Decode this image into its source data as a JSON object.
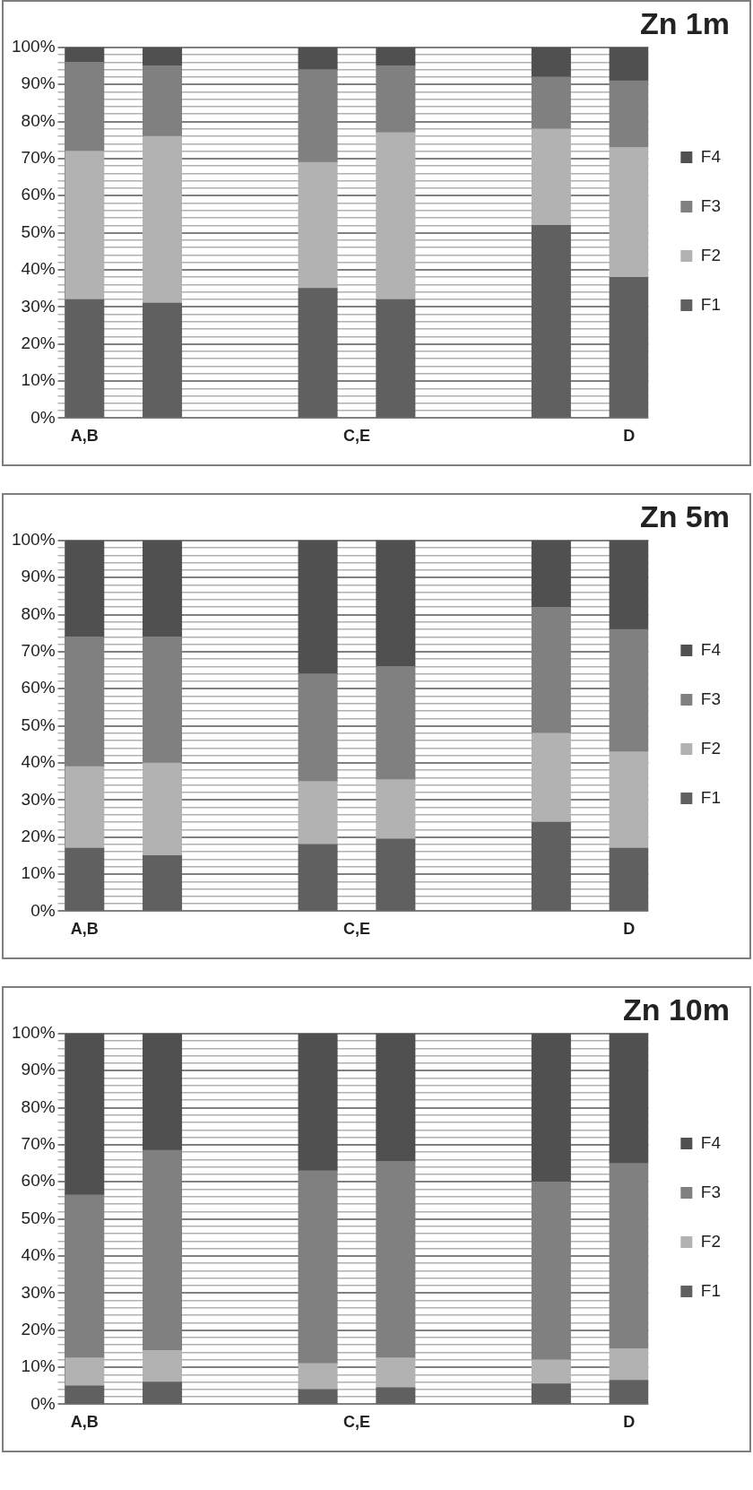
{
  "chart_data": [
    {
      "type": "bar",
      "title": "Zn 1m",
      "stacked": true,
      "legend": "right",
      "grid": "y",
      "categories": [
        "A,B",
        null,
        null,
        null,
        null,
        null,
        null,
        "C,E",
        null,
        null,
        null,
        null,
        null,
        null,
        "D"
      ],
      "ylim": [
        0,
        100
      ],
      "yticks": [
        {
          "value": 0,
          "label": "0%"
        },
        {
          "value": 2,
          "label": null
        },
        {
          "value": 4,
          "label": null
        },
        {
          "value": 6,
          "label": null
        },
        {
          "value": 8,
          "label": null
        },
        {
          "value": 10,
          "label": "10%"
        },
        {
          "value": 12,
          "label": null
        },
        {
          "value": 14,
          "label": null
        },
        {
          "value": 16,
          "label": null
        },
        {
          "value": 18,
          "label": null
        },
        {
          "value": 20,
          "label": "20%"
        },
        {
          "value": 22,
          "label": null
        },
        {
          "value": 24,
          "label": null
        },
        {
          "value": 26,
          "label": null
        },
        {
          "value": 28,
          "label": null
        },
        {
          "value": 30,
          "label": "30%"
        },
        {
          "value": 32,
          "label": null
        },
        {
          "value": 34,
          "label": null
        },
        {
          "value": 36,
          "label": null
        },
        {
          "value": 38,
          "label": null
        },
        {
          "value": 40,
          "label": "40%"
        },
        {
          "value": 42,
          "label": null
        },
        {
          "value": 44,
          "label": null
        },
        {
          "value": 46,
          "label": null
        },
        {
          "value": 48,
          "label": null
        },
        {
          "value": 50,
          "label": "50%"
        },
        {
          "value": 52,
          "label": null
        },
        {
          "value": 54,
          "label": null
        },
        {
          "value": 56,
          "label": null
        },
        {
          "value": 58,
          "label": null
        },
        {
          "value": 60,
          "label": "60%"
        },
        {
          "value": 62,
          "label": null
        },
        {
          "value": 64,
          "label": null
        },
        {
          "value": 66,
          "label": null
        },
        {
          "value": 68,
          "label": null
        },
        {
          "value": 70,
          "label": "70%"
        },
        {
          "value": 72,
          "label": null
        },
        {
          "value": 74,
          "label": null
        },
        {
          "value": 76,
          "label": null
        },
        {
          "value": 78,
          "label": null
        },
        {
          "value": 80,
          "label": "80%"
        },
        {
          "value": 82,
          "label": null
        },
        {
          "value": 84,
          "label": null
        },
        {
          "value": 86,
          "label": null
        },
        {
          "value": 88,
          "label": null
        },
        {
          "value": 90,
          "label": "90%"
        },
        {
          "value": 92,
          "label": null
        },
        {
          "value": 94,
          "label": null
        },
        {
          "value": 96,
          "label": null
        },
        {
          "value": 98,
          "label": null
        },
        {
          "value": 100,
          "label": "100%"
        }
      ],
      "series": [
        {
          "name": "F1",
          "color": "#606060",
          "values": [
            32,
            null,
            31,
            null,
            null,
            null,
            35,
            null,
            32,
            null,
            null,
            null,
            52,
            null,
            38
          ]
        },
        {
          "name": "F2",
          "color": "#b2b2b2",
          "values": [
            40,
            null,
            45,
            null,
            null,
            null,
            34,
            null,
            45,
            null,
            null,
            null,
            26,
            null,
            35
          ]
        },
        {
          "name": "F3",
          "color": "#808080",
          "values": [
            24,
            null,
            19,
            null,
            null,
            null,
            25,
            null,
            18,
            null,
            null,
            null,
            14,
            null,
            18
          ]
        },
        {
          "name": "F4",
          "color": "#505050",
          "values": [
            4,
            null,
            5,
            null,
            null,
            null,
            6,
            null,
            5,
            null,
            null,
            null,
            8,
            null,
            9
          ]
        }
      ]
    },
    {
      "type": "bar",
      "title": "Zn 5m",
      "stacked": true,
      "legend": "right",
      "grid": "y",
      "categories": [
        "A,B",
        null,
        null,
        null,
        null,
        null,
        null,
        "C,E",
        null,
        null,
        null,
        null,
        null,
        null,
        "D"
      ],
      "ylim": [
        0,
        100
      ],
      "yticks": [
        {
          "value": 0,
          "label": "0%"
        },
        {
          "value": 2,
          "label": null
        },
        {
          "value": 4,
          "label": null
        },
        {
          "value": 6,
          "label": null
        },
        {
          "value": 8,
          "label": null
        },
        {
          "value": 10,
          "label": "10%"
        },
        {
          "value": 12,
          "label": null
        },
        {
          "value": 14,
          "label": null
        },
        {
          "value": 16,
          "label": null
        },
        {
          "value": 18,
          "label": null
        },
        {
          "value": 20,
          "label": "20%"
        },
        {
          "value": 22,
          "label": null
        },
        {
          "value": 24,
          "label": null
        },
        {
          "value": 26,
          "label": null
        },
        {
          "value": 28,
          "label": null
        },
        {
          "value": 30,
          "label": "30%"
        },
        {
          "value": 32,
          "label": null
        },
        {
          "value": 34,
          "label": null
        },
        {
          "value": 36,
          "label": null
        },
        {
          "value": 38,
          "label": null
        },
        {
          "value": 40,
          "label": "40%"
        },
        {
          "value": 42,
          "label": null
        },
        {
          "value": 44,
          "label": null
        },
        {
          "value": 46,
          "label": null
        },
        {
          "value": 48,
          "label": null
        },
        {
          "value": 50,
          "label": "50%"
        },
        {
          "value": 52,
          "label": null
        },
        {
          "value": 54,
          "label": null
        },
        {
          "value": 56,
          "label": null
        },
        {
          "value": 58,
          "label": null
        },
        {
          "value": 60,
          "label": "60%"
        },
        {
          "value": 62,
          "label": null
        },
        {
          "value": 64,
          "label": null
        },
        {
          "value": 66,
          "label": null
        },
        {
          "value": 68,
          "label": null
        },
        {
          "value": 70,
          "label": "70%"
        },
        {
          "value": 72,
          "label": null
        },
        {
          "value": 74,
          "label": null
        },
        {
          "value": 76,
          "label": null
        },
        {
          "value": 78,
          "label": null
        },
        {
          "value": 80,
          "label": "80%"
        },
        {
          "value": 82,
          "label": null
        },
        {
          "value": 84,
          "label": null
        },
        {
          "value": 86,
          "label": null
        },
        {
          "value": 88,
          "label": null
        },
        {
          "value": 90,
          "label": "90%"
        },
        {
          "value": 92,
          "label": null
        },
        {
          "value": 94,
          "label": null
        },
        {
          "value": 96,
          "label": null
        },
        {
          "value": 98,
          "label": null
        },
        {
          "value": 100,
          "label": "100%"
        }
      ],
      "series": [
        {
          "name": "F1",
          "color": "#606060",
          "values": [
            17,
            null,
            15,
            null,
            null,
            null,
            18,
            null,
            19.5,
            null,
            null,
            null,
            24,
            null,
            17
          ]
        },
        {
          "name": "F2",
          "color": "#b2b2b2",
          "values": [
            22,
            null,
            25,
            null,
            null,
            null,
            17,
            null,
            16,
            null,
            null,
            null,
            24,
            null,
            26
          ]
        },
        {
          "name": "F3",
          "color": "#808080",
          "values": [
            35,
            null,
            34,
            null,
            null,
            null,
            29,
            null,
            30.5,
            null,
            null,
            null,
            34,
            null,
            33
          ]
        },
        {
          "name": "F4",
          "color": "#505050",
          "values": [
            26,
            null,
            26,
            null,
            null,
            null,
            36,
            null,
            34,
            null,
            null,
            null,
            18,
            null,
            24
          ]
        }
      ]
    },
    {
      "type": "bar",
      "title": "Zn 10m",
      "stacked": true,
      "legend": "right",
      "grid": "y",
      "categories": [
        "A,B",
        null,
        null,
        null,
        null,
        null,
        null,
        "C,E",
        null,
        null,
        null,
        null,
        null,
        null,
        "D"
      ],
      "ylim": [
        0,
        100
      ],
      "yticks": [
        {
          "value": 0,
          "label": "0%"
        },
        {
          "value": 2,
          "label": null
        },
        {
          "value": 4,
          "label": null
        },
        {
          "value": 6,
          "label": null
        },
        {
          "value": 8,
          "label": null
        },
        {
          "value": 10,
          "label": "10%"
        },
        {
          "value": 12,
          "label": null
        },
        {
          "value": 14,
          "label": null
        },
        {
          "value": 16,
          "label": null
        },
        {
          "value": 18,
          "label": null
        },
        {
          "value": 20,
          "label": "20%"
        },
        {
          "value": 22,
          "label": null
        },
        {
          "value": 24,
          "label": null
        },
        {
          "value": 26,
          "label": null
        },
        {
          "value": 28,
          "label": null
        },
        {
          "value": 30,
          "label": "30%"
        },
        {
          "value": 32,
          "label": null
        },
        {
          "value": 34,
          "label": null
        },
        {
          "value": 36,
          "label": null
        },
        {
          "value": 38,
          "label": null
        },
        {
          "value": 40,
          "label": "40%"
        },
        {
          "value": 42,
          "label": null
        },
        {
          "value": 44,
          "label": null
        },
        {
          "value": 46,
          "label": null
        },
        {
          "value": 48,
          "label": null
        },
        {
          "value": 50,
          "label": "50%"
        },
        {
          "value": 52,
          "label": null
        },
        {
          "value": 54,
          "label": null
        },
        {
          "value": 56,
          "label": null
        },
        {
          "value": 58,
          "label": null
        },
        {
          "value": 60,
          "label": "60%"
        },
        {
          "value": 62,
          "label": null
        },
        {
          "value": 64,
          "label": null
        },
        {
          "value": 66,
          "label": null
        },
        {
          "value": 68,
          "label": null
        },
        {
          "value": 70,
          "label": "70%"
        },
        {
          "value": 72,
          "label": null
        },
        {
          "value": 74,
          "label": null
        },
        {
          "value": 76,
          "label": null
        },
        {
          "value": 78,
          "label": null
        },
        {
          "value": 80,
          "label": "80%"
        },
        {
          "value": 82,
          "label": null
        },
        {
          "value": 84,
          "label": null
        },
        {
          "value": 86,
          "label": null
        },
        {
          "value": 88,
          "label": null
        },
        {
          "value": 90,
          "label": "90%"
        },
        {
          "value": 92,
          "label": null
        },
        {
          "value": 94,
          "label": null
        },
        {
          "value": 96,
          "label": null
        },
        {
          "value": 98,
          "label": null
        },
        {
          "value": 100,
          "label": "100%"
        }
      ],
      "series": [
        {
          "name": "F1",
          "color": "#606060",
          "values": [
            5,
            null,
            6,
            null,
            null,
            null,
            4,
            null,
            4.5,
            null,
            null,
            null,
            5.5,
            null,
            6.5
          ]
        },
        {
          "name": "F2",
          "color": "#b2b2b2",
          "values": [
            7.5,
            null,
            8.5,
            null,
            null,
            null,
            7,
            null,
            8,
            null,
            null,
            null,
            6.5,
            null,
            8.5
          ]
        },
        {
          "name": "F3",
          "color": "#808080",
          "values": [
            44,
            null,
            54,
            null,
            null,
            null,
            52,
            null,
            53,
            null,
            null,
            null,
            48,
            null,
            50
          ]
        },
        {
          "name": "F4",
          "color": "#505050",
          "values": [
            43.5,
            null,
            31.5,
            null,
            null,
            null,
            37,
            null,
            34.5,
            null,
            null,
            null,
            40,
            null,
            35
          ]
        }
      ]
    }
  ]
}
